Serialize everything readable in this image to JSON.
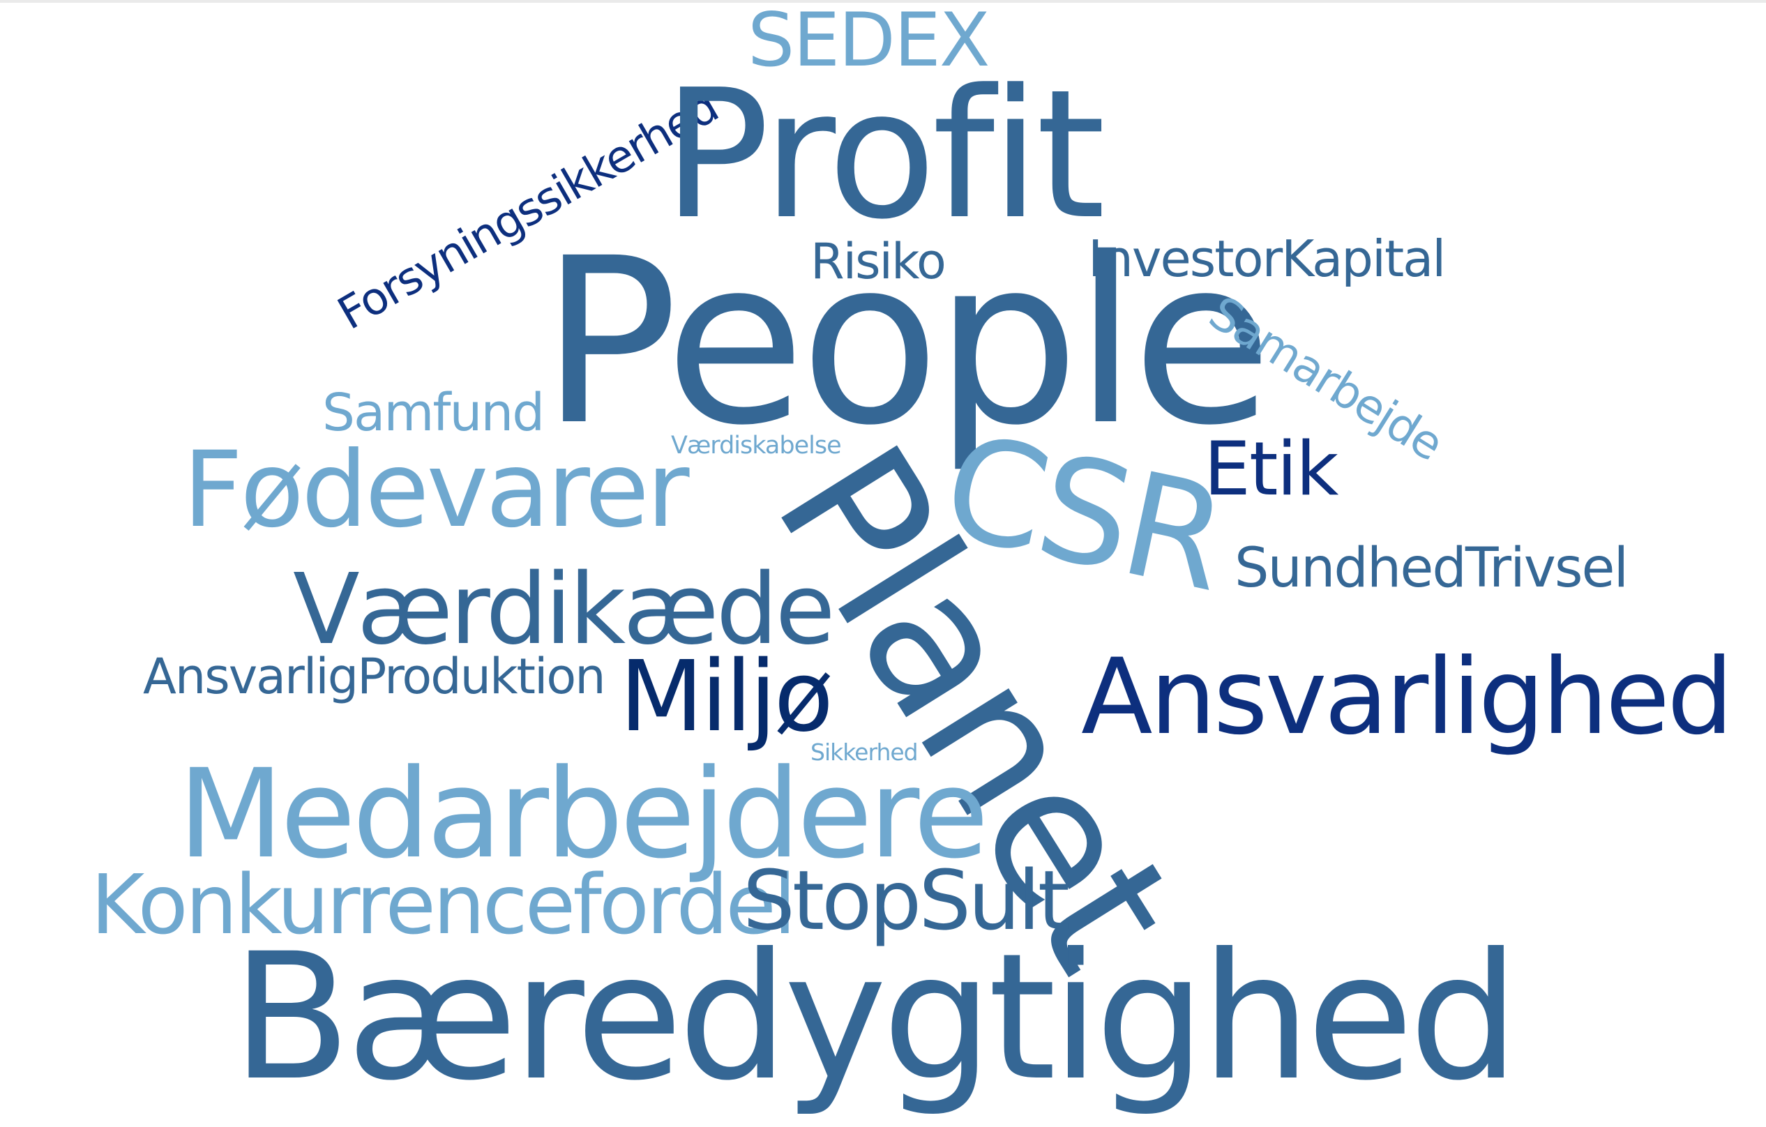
{
  "colors": {
    "mid_blue": "#356795",
    "light_blue": "#6fa8cf",
    "dark_blue": "#0d2f7e",
    "navy": "#062b6c"
  },
  "words": {
    "sedex": "SEDEX",
    "forsyningssikkerhed": "Forsyningssikkerhed",
    "profit": "Profit",
    "risiko": "Risiko",
    "investorkapital": "InvestorKapital",
    "people": "People",
    "samarbejde": "Samarbejde",
    "samfund": "Samfund",
    "vaerdiskabelse": "Værdiskabelse",
    "etik": "Etik",
    "fodevarer": "Fødevarer",
    "csr": "CSR",
    "planet": "Planet",
    "sundhedtrivsel": "SundhedTrivsel",
    "vaerdikaede": "Værdikæde",
    "ansvarligproduktion": "AnsvarligProduktion",
    "miljo": "Miljø",
    "ansvarlighed": "Ansvarlighed",
    "sikkerhed": "Sikkerhed",
    "medarbejdere": "Medarbejdere",
    "konkurrencefordel": "Konkurrencefordel",
    "stopsult": "StopSult",
    "baeredygtighed": "Bæredygtighed"
  }
}
